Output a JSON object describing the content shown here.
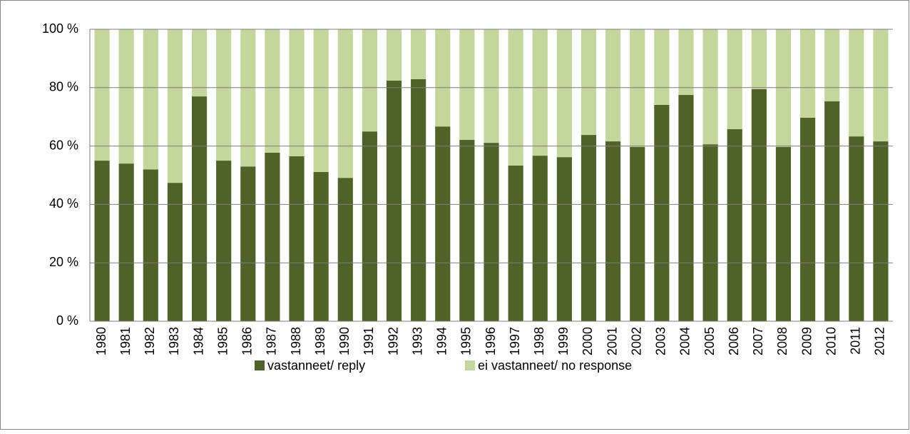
{
  "chart_data": {
    "type": "stacked_bar",
    "categories": [
      "1980",
      "1981",
      "1982",
      "1983",
      "1984",
      "1985",
      "1986",
      "1987",
      "1988",
      "1989",
      "1990",
      "1991",
      "1992",
      "1993",
      "1994",
      "1995",
      "1996",
      "1997",
      "1998",
      "1999",
      "2000",
      "2001",
      "2002",
      "2003",
      "2004",
      "2005",
      "2006",
      "2007",
      "2008",
      "2009",
      "2010",
      "2011",
      "2012"
    ],
    "series": [
      {
        "name": "vastanneet/ reply",
        "color": "#4f6228",
        "values": [
          55,
          54,
          52,
          47.4,
          77,
          55,
          53,
          57.7,
          56.5,
          51.1,
          49.1,
          65,
          82.4,
          82.9,
          66.7,
          62.1,
          61.1,
          53.3,
          56.7,
          56.2,
          63.8,
          61.6,
          59.7,
          74.1,
          77.5,
          60.6,
          65.8,
          79.5,
          59.7,
          69.7,
          75.3,
          63.3,
          61.6
        ]
      },
      {
        "name": "ei vastanneet/ no response",
        "color": "#c3d69b",
        "values": [
          45,
          46,
          48,
          52.6,
          23,
          45,
          47,
          42.3,
          43.5,
          48.9,
          50.9,
          35,
          17.6,
          17.1,
          33.3,
          37.9,
          38.9,
          46.7,
          43.3,
          43.8,
          36.2,
          38.4,
          40.3,
          25.9,
          22.5,
          39.4,
          34.2,
          20.5,
          40.3,
          30.3,
          24.7,
          36.7,
          38.4
        ]
      }
    ],
    "ylim": [
      0,
      100
    ],
    "yticks": [
      {
        "value": 0,
        "label": "0 %"
      },
      {
        "value": 20,
        "label": "20 %"
      },
      {
        "value": 40,
        "label": "40 %"
      },
      {
        "value": 60,
        "label": "60 %"
      },
      {
        "value": 80,
        "label": "80 %"
      },
      {
        "value": 100,
        "label": "100 %"
      }
    ],
    "grid": true,
    "legend": "bottom"
  }
}
